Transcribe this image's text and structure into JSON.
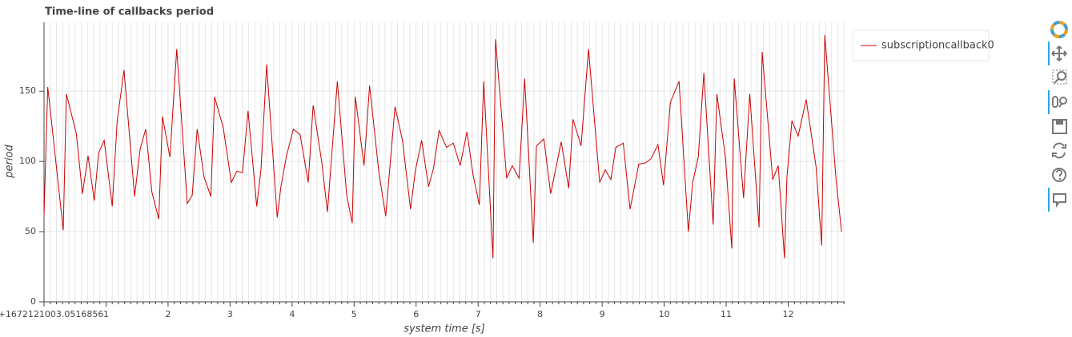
{
  "chart_data": {
    "type": "line",
    "title": "Time-line of callbacks period",
    "xlabel": "system time [s]",
    "ylabel": "period",
    "x": [
      0,
      0.06,
      0.31,
      0.36,
      0.52,
      0.62,
      0.71,
      0.81,
      0.88,
      0.97,
      1.1,
      1.18,
      1.29,
      1.46,
      1.55,
      1.64,
      1.74,
      1.85,
      1.91,
      2.03,
      2.14,
      2.31,
      2.39,
      2.47,
      2.58,
      2.69,
      2.75,
      2.89,
      3.02,
      3.11,
      3.2,
      3.29,
      3.43,
      3.5,
      3.59,
      3.76,
      3.82,
      3.91,
      4.02,
      4.13,
      4.26,
      4.34,
      4.48,
      4.57,
      4.73,
      4.88,
      4.97,
      5.02,
      5.16,
      5.25,
      5.4,
      5.51,
      5.66,
      5.78,
      5.91,
      5.99,
      6.09,
      6.2,
      6.28,
      6.37,
      6.49,
      6.6,
      6.71,
      6.82,
      6.92,
      7.02,
      7.09,
      7.24,
      7.28,
      7.46,
      7.55,
      7.66,
      7.75,
      7.89,
      7.94,
      8.06,
      8.17,
      8.34,
      8.46,
      8.53,
      8.66,
      8.78,
      8.96,
      9.05,
      9.14,
      9.22,
      9.34,
      9.45,
      9.59,
      9.7,
      9.79,
      9.9,
      9.99,
      10.1,
      10.24,
      10.39,
      10.46,
      10.55,
      10.64,
      10.79,
      10.85,
      10.99,
      11.09,
      11.13,
      11.28,
      11.38,
      11.53,
      11.58,
      11.75,
      11.84,
      11.94,
      11.98,
      12.06,
      12.16,
      12.29,
      12.45,
      12.54,
      12.59,
      12.77,
      12.86
    ],
    "series": [
      {
        "name": "subscriptioncallback0",
        "color": "#cc0000",
        "values": [
          62,
          153,
          51,
          148,
          120,
          77,
          104,
          72,
          106,
          115,
          68,
          129,
          165,
          75,
          109,
          123,
          78,
          59,
          132,
          103,
          180,
          70,
          76,
          123,
          89,
          75,
          146,
          124,
          85,
          93,
          92,
          136,
          68,
          95,
          169,
          60,
          82,
          104,
          123,
          119,
          85,
          140,
          99,
          64,
          157,
          76,
          56,
          146,
          97,
          154,
          92,
          61,
          139,
          115,
          66,
          94,
          115,
          82,
          95,
          122,
          110,
          113,
          97,
          121,
          90,
          69,
          157,
          31,
          187,
          88,
          97,
          88,
          159,
          42,
          111,
          116,
          77,
          114,
          81,
          130,
          111,
          180,
          85,
          94,
          87,
          110,
          113,
          66,
          98,
          99,
          102,
          112,
          83,
          142,
          157,
          50,
          85,
          103,
          163,
          55,
          148,
          102,
          38,
          159,
          74,
          148,
          53,
          178,
          87,
          97,
          31,
          89,
          129,
          118,
          144,
          96,
          40,
          190,
          88,
          50
        ]
      }
    ],
    "xlim": [
      0,
      12.91
    ],
    "ylim": [
      0,
      199
    ],
    "xticks": [
      {
        "value": 0,
        "label": "0+1672121003.0516856"
      },
      1,
      2,
      3,
      4,
      5,
      6,
      7,
      8,
      9,
      10,
      11,
      12
    ],
    "yticks": [
      0,
      50,
      100,
      150
    ],
    "grid": true,
    "legend": "top-right"
  }
}
